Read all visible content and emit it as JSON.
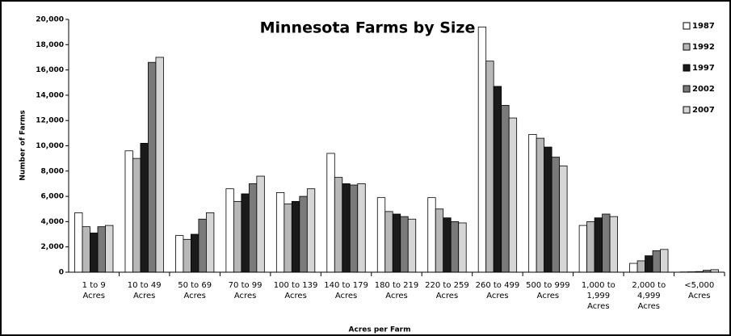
{
  "chart_data": {
    "type": "bar",
    "title": "Minnesota Farms by Size",
    "x_label": "Acres per Farm",
    "y_label": "Number of Farms",
    "categories": [
      "1 to 9 Acres",
      "10 to 49 Acres",
      "50 to 69 Acres",
      "70 to 99 Acres",
      "100 to 139 Acres",
      "140 to 179 Acres",
      "180 to 219 Acres",
      "220 to 259 Acres",
      "260 to 499 Acres",
      "500 to 999 Acres",
      "1,000 to 1,999 Acres",
      "2,000 to 4,999 Acres",
      "<5,000 Acres"
    ],
    "series": [
      {
        "name": "1987",
        "color": "#ffffff",
        "values": [
          4700,
          9600,
          2900,
          6600,
          6300,
          9400,
          5900,
          5900,
          19400,
          10900,
          3700,
          700,
          20
        ]
      },
      {
        "name": "1992",
        "color": "#b8b8b8",
        "values": [
          3600,
          9000,
          2600,
          5600,
          5400,
          7500,
          4800,
          5000,
          16700,
          10600,
          4000,
          900,
          30
        ]
      },
      {
        "name": "1997",
        "color": "#1a1a1a",
        "values": [
          3100,
          10200,
          3000,
          6200,
          5600,
          7000,
          4600,
          4300,
          14700,
          9900,
          4300,
          1300,
          50
        ]
      },
      {
        "name": "2002",
        "color": "#7a7a7a",
        "values": [
          3600,
          16600,
          4200,
          7000,
          6000,
          6900,
          4400,
          4000,
          13200,
          9100,
          4600,
          1700,
          150
        ]
      },
      {
        "name": "2007",
        "color": "#d6d6d6",
        "values": [
          3700,
          17000,
          4700,
          7600,
          6600,
          7000,
          4200,
          3900,
          12200,
          8400,
          4400,
          1800,
          200
        ]
      }
    ],
    "ylim": [
      0,
      20000
    ],
    "yticks": [
      0,
      {
        "value": 2000,
        "label": "2,000"
      },
      {
        "value": 4000,
        "label": "4,000"
      },
      {
        "value": 6000,
        "label": "6,000"
      },
      {
        "value": 8000,
        "label": "8,000"
      },
      {
        "value": 10000,
        "label": "10,000"
      },
      {
        "value": 12000,
        "label": "12,000"
      },
      {
        "value": 14000,
        "label": "14,000"
      },
      {
        "value": 16000,
        "label": "16,000"
      },
      {
        "value": 18000,
        "label": "18,000"
      },
      {
        "value": 20000,
        "label": "20,000"
      }
    ],
    "legend": "top-right"
  }
}
